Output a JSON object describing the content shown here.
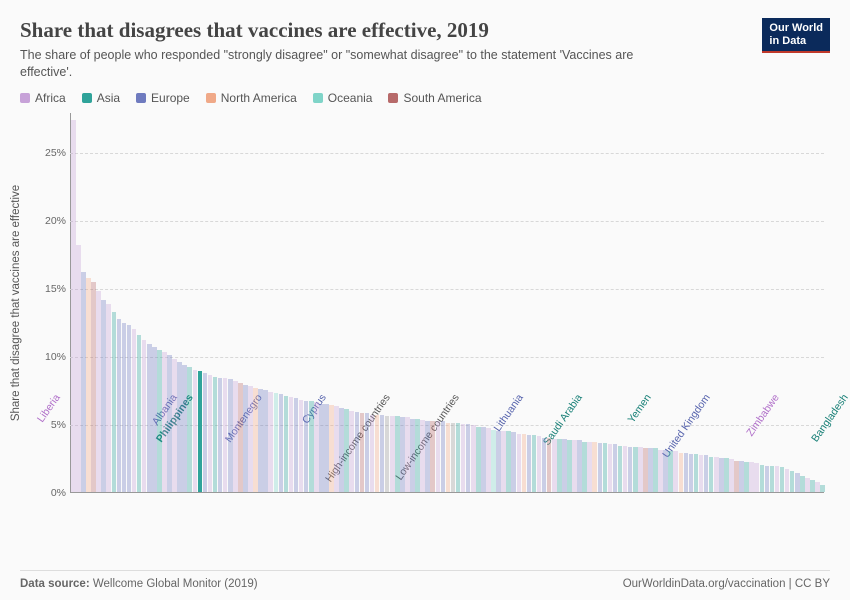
{
  "header": {
    "title": "Share that disagrees that vaccines are effective, 2019",
    "subtitle": "The share of people who responded \"strongly disagree\" or \"somewhat disagree\" to the statement 'Vaccines are effective'.",
    "logo_line1": "Our World",
    "logo_line2": "in Data"
  },
  "legend": [
    {
      "label": "Africa",
      "color": "#c7a2d8"
    },
    {
      "label": "Asia",
      "color": "#2fa39a"
    },
    {
      "label": "Europe",
      "color": "#6f7bbf"
    },
    {
      "label": "North America",
      "color": "#f0a988"
    },
    {
      "label": "Oceania",
      "color": "#7fd4c8"
    },
    {
      "label": "South America",
      "color": "#b76a6a"
    }
  ],
  "chart": {
    "type": "bar",
    "ylabel": "Share that disagree that vaccines are effective",
    "ylim": [
      0,
      28
    ],
    "yticks": [
      0,
      5,
      10,
      15,
      20,
      25
    ],
    "ytick_suffix": "%",
    "background_color": "#fafafa",
    "grid_color": "#d8d8d8",
    "axis_color": "#999999",
    "bar_alpha_default": 0.35,
    "bar_alpha_highlight": 1.0,
    "highlight_index": 25,
    "title_fontsize": 21,
    "subtitle_fontsize": 12.5,
    "label_fontsize": 11.5,
    "tick_fontsize": 10.5,
    "font_family": "sans-serif",
    "xlabels": [
      {
        "idx": 0,
        "text": "Liberia",
        "color": "#b06fc9",
        "bold": false
      },
      {
        "idx": 22,
        "text": "Albania",
        "color": "#5562ac",
        "bold": false
      },
      {
        "idx": 25,
        "text": "Philippines",
        "color": "#167f76",
        "bold": true
      },
      {
        "idx": 38,
        "text": "Montenegro",
        "color": "#5562ac",
        "bold": false
      },
      {
        "idx": 50,
        "text": "Cyprus",
        "color": "#5562ac",
        "bold": false
      },
      {
        "idx": 62,
        "text": "High-income countries",
        "color": "#555555",
        "bold": false
      },
      {
        "idx": 75,
        "text": "Low-income countries",
        "color": "#555555",
        "bold": false
      },
      {
        "idx": 87,
        "text": "Lithuania",
        "color": "#5562ac",
        "bold": false
      },
      {
        "idx": 98,
        "text": "Saudi Arabia",
        "color": "#167f76",
        "bold": false
      },
      {
        "idx": 111,
        "text": "Yemen",
        "color": "#167f76",
        "bold": false
      },
      {
        "idx": 122,
        "text": "United Kingdom",
        "color": "#5562ac",
        "bold": false
      },
      {
        "idx": 135,
        "text": "Zimbabwe",
        "color": "#b06fc9",
        "bold": false
      },
      {
        "idx": 148,
        "text": "Bangladesh",
        "color": "#167f76",
        "bold": false
      }
    ],
    "bars": [
      {
        "v": 27.5,
        "c": "#c7a2d8"
      },
      {
        "v": 18.2,
        "c": "#c7a2d8"
      },
      {
        "v": 16.2,
        "c": "#6f7bbf"
      },
      {
        "v": 15.8,
        "c": "#f0a988"
      },
      {
        "v": 15.5,
        "c": "#b76a6a"
      },
      {
        "v": 14.8,
        "c": "#c7a2d8"
      },
      {
        "v": 14.2,
        "c": "#6f7bbf"
      },
      {
        "v": 13.9,
        "c": "#c7a2d8"
      },
      {
        "v": 13.3,
        "c": "#2fa39a"
      },
      {
        "v": 12.8,
        "c": "#6f7bbf"
      },
      {
        "v": 12.5,
        "c": "#6f7bbf"
      },
      {
        "v": 12.3,
        "c": "#6f7bbf"
      },
      {
        "v": 12.0,
        "c": "#c7a2d8"
      },
      {
        "v": 11.6,
        "c": "#2fa39a"
      },
      {
        "v": 11.2,
        "c": "#c7a2d8"
      },
      {
        "v": 10.9,
        "c": "#6f7bbf"
      },
      {
        "v": 10.7,
        "c": "#6f7bbf"
      },
      {
        "v": 10.5,
        "c": "#2fa39a"
      },
      {
        "v": 10.3,
        "c": "#c7a2d8"
      },
      {
        "v": 10.1,
        "c": "#6f7bbf"
      },
      {
        "v": 9.8,
        "c": "#c7a2d8"
      },
      {
        "v": 9.6,
        "c": "#6f7bbf"
      },
      {
        "v": 9.4,
        "c": "#6f7bbf"
      },
      {
        "v": 9.2,
        "c": "#2fa39a"
      },
      {
        "v": 9.0,
        "c": "#c7a2d8"
      },
      {
        "v": 8.9,
        "c": "#2fa39a"
      },
      {
        "v": 8.8,
        "c": "#6f7bbf"
      },
      {
        "v": 8.6,
        "c": "#c7a2d8"
      },
      {
        "v": 8.5,
        "c": "#2fa39a"
      },
      {
        "v": 8.4,
        "c": "#6f7bbf"
      },
      {
        "v": 8.4,
        "c": "#c7a2d8"
      },
      {
        "v": 8.3,
        "c": "#6f7bbf"
      },
      {
        "v": 8.2,
        "c": "#c7a2d8"
      },
      {
        "v": 8.0,
        "c": "#b76a6a"
      },
      {
        "v": 7.9,
        "c": "#6f7bbf"
      },
      {
        "v": 7.8,
        "c": "#c7a2d8"
      },
      {
        "v": 7.7,
        "c": "#f0a988"
      },
      {
        "v": 7.6,
        "c": "#6f7bbf"
      },
      {
        "v": 7.5,
        "c": "#6f7bbf"
      },
      {
        "v": 7.4,
        "c": "#c7a2d8"
      },
      {
        "v": 7.3,
        "c": "#7fd4c8"
      },
      {
        "v": 7.2,
        "c": "#6f7bbf"
      },
      {
        "v": 7.1,
        "c": "#2fa39a"
      },
      {
        "v": 7.0,
        "c": "#c7a2d8"
      },
      {
        "v": 6.9,
        "c": "#6f7bbf"
      },
      {
        "v": 6.8,
        "c": "#c7a2d8"
      },
      {
        "v": 6.7,
        "c": "#6f7bbf"
      },
      {
        "v": 6.7,
        "c": "#2fa39a"
      },
      {
        "v": 6.6,
        "c": "#c7a2d8"
      },
      {
        "v": 6.5,
        "c": "#6f7bbf"
      },
      {
        "v": 6.5,
        "c": "#6f7bbf"
      },
      {
        "v": 6.4,
        "c": "#f0a988"
      },
      {
        "v": 6.3,
        "c": "#c7a2d8"
      },
      {
        "v": 6.2,
        "c": "#6f7bbf"
      },
      {
        "v": 6.1,
        "c": "#2fa39a"
      },
      {
        "v": 6.0,
        "c": "#c7a2d8"
      },
      {
        "v": 5.9,
        "c": "#6f7bbf"
      },
      {
        "v": 5.8,
        "c": "#b76a6a"
      },
      {
        "v": 5.8,
        "c": "#6f7bbf"
      },
      {
        "v": 5.7,
        "c": "#c7a2d8"
      },
      {
        "v": 5.7,
        "c": "#f0a988"
      },
      {
        "v": 5.7,
        "c": "#6f7bbf"
      },
      {
        "v": 5.6,
        "c": "#999999"
      },
      {
        "v": 5.6,
        "c": "#c7a2d8"
      },
      {
        "v": 5.6,
        "c": "#2fa39a"
      },
      {
        "v": 5.5,
        "c": "#6f7bbf"
      },
      {
        "v": 5.5,
        "c": "#c7a2d8"
      },
      {
        "v": 5.4,
        "c": "#6f7bbf"
      },
      {
        "v": 5.4,
        "c": "#2fa39a"
      },
      {
        "v": 5.3,
        "c": "#c7a2d8"
      },
      {
        "v": 5.2,
        "c": "#6f7bbf"
      },
      {
        "v": 5.2,
        "c": "#b76a6a"
      },
      {
        "v": 5.2,
        "c": "#c7a2d8"
      },
      {
        "v": 5.2,
        "c": "#6f7bbf"
      },
      {
        "v": 5.1,
        "c": "#f0a988"
      },
      {
        "v": 5.1,
        "c": "#999999"
      },
      {
        "v": 5.1,
        "c": "#2fa39a"
      },
      {
        "v": 5.0,
        "c": "#c7a2d8"
      },
      {
        "v": 5.0,
        "c": "#6f7bbf"
      },
      {
        "v": 4.9,
        "c": "#c7a2d8"
      },
      {
        "v": 4.8,
        "c": "#2fa39a"
      },
      {
        "v": 4.8,
        "c": "#6f7bbf"
      },
      {
        "v": 4.7,
        "c": "#c7a2d8"
      },
      {
        "v": 4.6,
        "c": "#7fd4c8"
      },
      {
        "v": 4.5,
        "c": "#6f7bbf"
      },
      {
        "v": 4.5,
        "c": "#c7a2d8"
      },
      {
        "v": 4.5,
        "c": "#2fa39a"
      },
      {
        "v": 4.4,
        "c": "#6f7bbf"
      },
      {
        "v": 4.3,
        "c": "#c7a2d8"
      },
      {
        "v": 4.3,
        "c": "#f0a988"
      },
      {
        "v": 4.2,
        "c": "#6f7bbf"
      },
      {
        "v": 4.2,
        "c": "#2fa39a"
      },
      {
        "v": 4.1,
        "c": "#c7a2d8"
      },
      {
        "v": 4.0,
        "c": "#6f7bbf"
      },
      {
        "v": 4.0,
        "c": "#b76a6a"
      },
      {
        "v": 3.9,
        "c": "#c7a2d8"
      },
      {
        "v": 3.9,
        "c": "#2fa39a"
      },
      {
        "v": 3.9,
        "c": "#6f7bbf"
      },
      {
        "v": 3.8,
        "c": "#2fa39a"
      },
      {
        "v": 3.8,
        "c": "#c7a2d8"
      },
      {
        "v": 3.8,
        "c": "#6f7bbf"
      },
      {
        "v": 3.7,
        "c": "#2fa39a"
      },
      {
        "v": 3.7,
        "c": "#c7a2d8"
      },
      {
        "v": 3.7,
        "c": "#f0a988"
      },
      {
        "v": 3.6,
        "c": "#6f7bbf"
      },
      {
        "v": 3.6,
        "c": "#2fa39a"
      },
      {
        "v": 3.5,
        "c": "#c7a2d8"
      },
      {
        "v": 3.5,
        "c": "#6f7bbf"
      },
      {
        "v": 3.4,
        "c": "#2fa39a"
      },
      {
        "v": 3.4,
        "c": "#c7a2d8"
      },
      {
        "v": 3.3,
        "c": "#6f7bbf"
      },
      {
        "v": 3.3,
        "c": "#2fa39a"
      },
      {
        "v": 3.3,
        "c": "#c7a2d8"
      },
      {
        "v": 3.2,
        "c": "#b76a6a"
      },
      {
        "v": 3.2,
        "c": "#6f7bbf"
      },
      {
        "v": 3.2,
        "c": "#2fa39a"
      },
      {
        "v": 3.1,
        "c": "#c7a2d8"
      },
      {
        "v": 3.1,
        "c": "#6f7bbf"
      },
      {
        "v": 3.0,
        "c": "#2fa39a"
      },
      {
        "v": 3.0,
        "c": "#c7a2d8"
      },
      {
        "v": 2.9,
        "c": "#f0a988"
      },
      {
        "v": 2.9,
        "c": "#6f7bbf"
      },
      {
        "v": 2.8,
        "c": "#6f7bbf"
      },
      {
        "v": 2.8,
        "c": "#2fa39a"
      },
      {
        "v": 2.7,
        "c": "#c7a2d8"
      },
      {
        "v": 2.7,
        "c": "#6f7bbf"
      },
      {
        "v": 2.6,
        "c": "#2fa39a"
      },
      {
        "v": 2.6,
        "c": "#c7a2d8"
      },
      {
        "v": 2.5,
        "c": "#6f7bbf"
      },
      {
        "v": 2.5,
        "c": "#2fa39a"
      },
      {
        "v": 2.4,
        "c": "#c7a2d8"
      },
      {
        "v": 2.3,
        "c": "#b76a6a"
      },
      {
        "v": 2.3,
        "c": "#6f7bbf"
      },
      {
        "v": 2.2,
        "c": "#2fa39a"
      },
      {
        "v": 2.2,
        "c": "#c7a2d8"
      },
      {
        "v": 2.1,
        "c": "#c7a2d8"
      },
      {
        "v": 2.0,
        "c": "#2fa39a"
      },
      {
        "v": 1.9,
        "c": "#6f7bbf"
      },
      {
        "v": 1.9,
        "c": "#2fa39a"
      },
      {
        "v": 1.9,
        "c": "#c7a2d8"
      },
      {
        "v": 1.8,
        "c": "#2fa39a"
      },
      {
        "v": 1.7,
        "c": "#c7a2d8"
      },
      {
        "v": 1.5,
        "c": "#2fa39a"
      },
      {
        "v": 1.4,
        "c": "#6f7bbf"
      },
      {
        "v": 1.2,
        "c": "#2fa39a"
      },
      {
        "v": 1.0,
        "c": "#c7a2d8"
      },
      {
        "v": 0.9,
        "c": "#2fa39a"
      },
      {
        "v": 0.7,
        "c": "#c7a2d8"
      },
      {
        "v": 0.5,
        "c": "#2fa39a"
      }
    ]
  },
  "footer": {
    "source_prefix": "Data source: ",
    "source": "Wellcome Global Monitor (2019)",
    "attribution": "OurWorldinData.org/vaccination | CC BY"
  }
}
